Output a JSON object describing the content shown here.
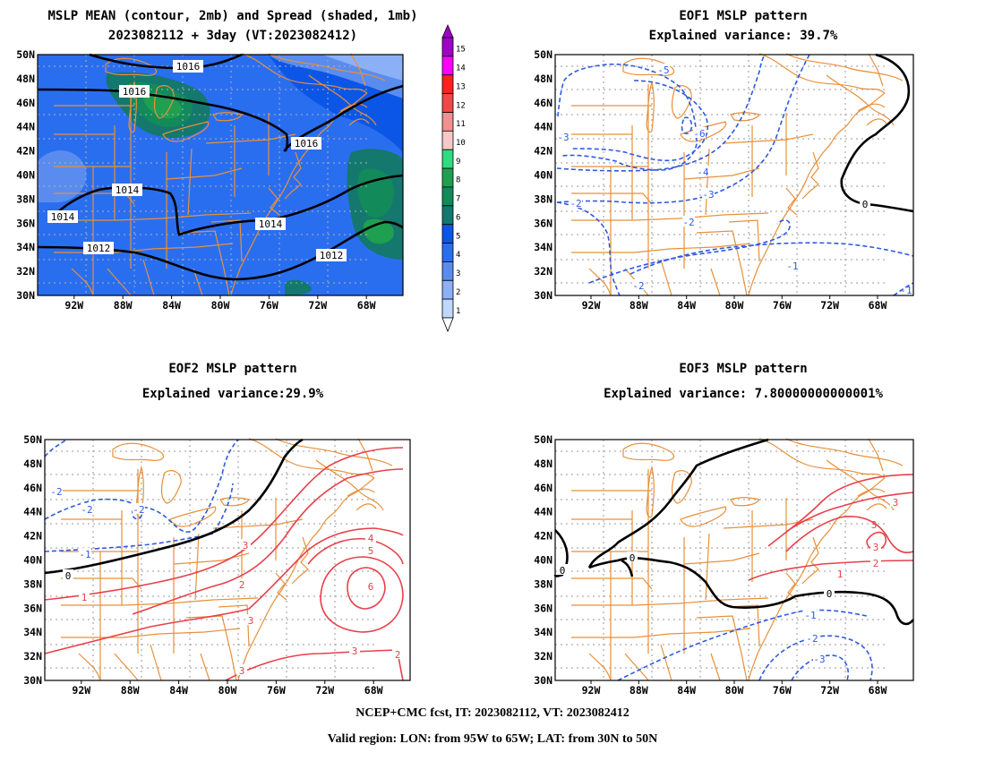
{
  "panels": [
    {
      "title_line1": "MSLP MEAN (contour, 2mb) and Spread (shaded, 1mb)",
      "title_line2": "2023082112 + 3day (VT:2023082412)"
    },
    {
      "title_line1": "EOF1 MSLP pattern",
      "title_line2": "Explained variance: 39.7%"
    },
    {
      "title_line1": "EOF2 MSLP pattern",
      "title_line2": "Explained variance:29.9%"
    },
    {
      "title_line1": "EOF3 MSLP pattern",
      "title_line2": "Explained variance: 7.80000000000001%"
    }
  ],
  "axes": {
    "lat_labels": [
      "50N",
      "48N",
      "46N",
      "44N",
      "42N",
      "40N",
      "38N",
      "36N",
      "34N",
      "32N",
      "30N"
    ],
    "lon_labels": [
      "92W",
      "88W",
      "84W",
      "80W",
      "76W",
      "72W",
      "68W"
    ]
  },
  "colorbar": {
    "levels": [
      "15",
      "14",
      "13",
      "12",
      "11",
      "10",
      "9",
      "8",
      "7",
      "6",
      "5",
      "4",
      "3",
      "2",
      "1"
    ],
    "colors": [
      "#a000c8",
      "#ff00ff",
      "#ff2020",
      "#f04848",
      "#f09090",
      "#f8c8c8",
      "#2edc82",
      "#1ea050",
      "#128a5a",
      "#14786e",
      "#0b56e6",
      "#2a6ef0",
      "#5a8cf0",
      "#8cb0f8",
      "#c0d8ff"
    ]
  },
  "contour_labels": {
    "mean": [
      "1016",
      "1016",
      "1016",
      "1014",
      "1014",
      "1014",
      "1012",
      "1012"
    ],
    "eof1": [
      "-5",
      "-6",
      "-4",
      "-3",
      "-2",
      "-2",
      "-2",
      "-1",
      "-1",
      "0",
      "-3"
    ],
    "eof2": [
      "-2",
      "-2",
      "-2",
      "-1",
      "0",
      "1",
      "2",
      "3",
      "3",
      "3",
      "3",
      "4",
      "5",
      "6",
      "2"
    ],
    "eof3": [
      "0",
      "0",
      "-1",
      "-2",
      "-3",
      "1",
      "2",
      "3",
      "3",
      "3",
      "0"
    ]
  },
  "footer": {
    "line1": "NCEP+CMC fcst, IT: 2023082112, VT: 2023082412",
    "line2": "Valid region: LON: from 95W to 65W; LAT: from 30N to 50N"
  },
  "colors": {
    "land_lines": "#e8903a",
    "positive": "#e8404a",
    "negative": "#2e5ae0",
    "zero": "#000000",
    "grid": "#9a9a9a"
  }
}
